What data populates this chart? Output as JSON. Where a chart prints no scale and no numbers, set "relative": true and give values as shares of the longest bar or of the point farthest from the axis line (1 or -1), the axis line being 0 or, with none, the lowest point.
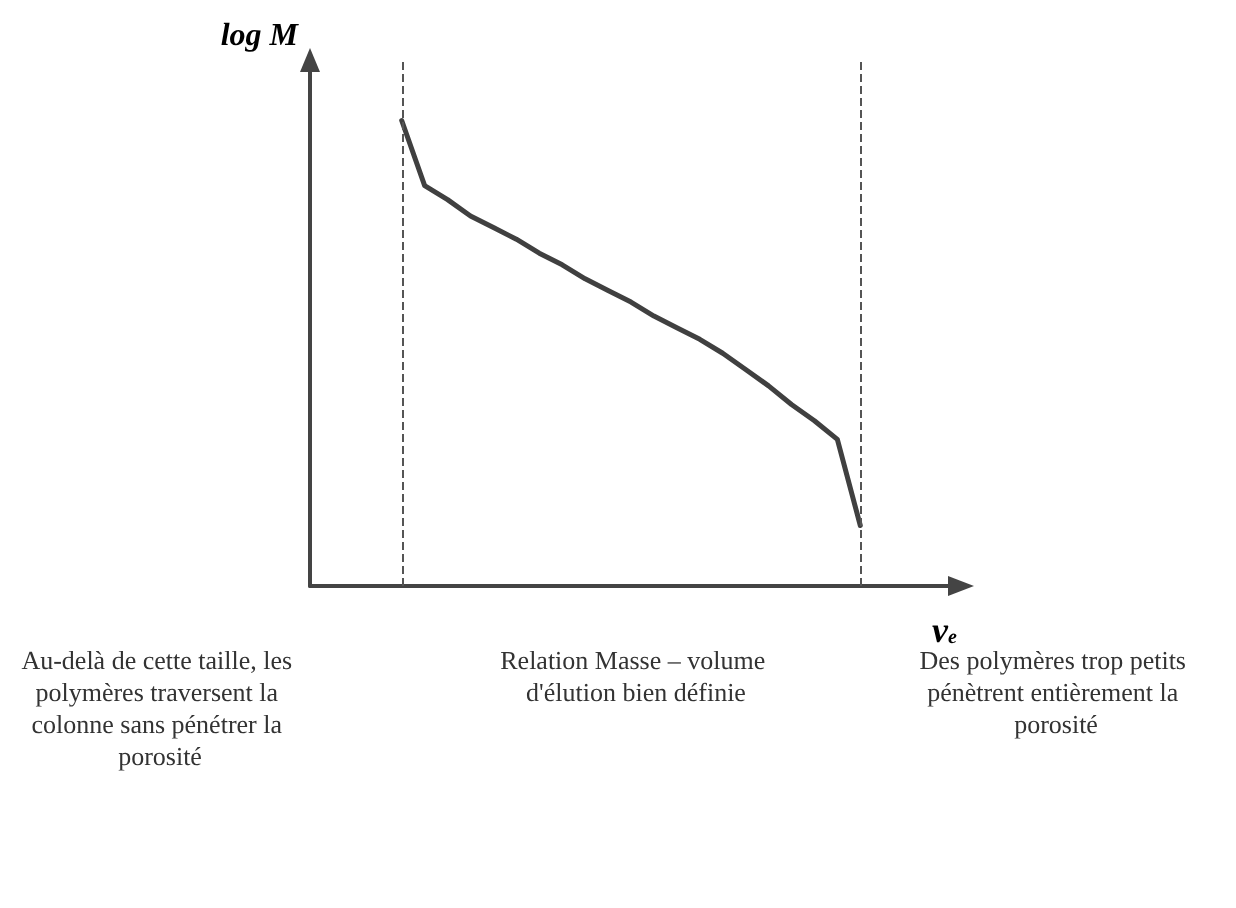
{
  "chart_data": {
    "type": "line",
    "relative": true,
    "xlabel": "v$_{e}$",
    "ylabel": "log M",
    "categories": [
      null,
      null,
      null,
      null,
      null,
      null,
      null,
      null,
      null,
      null,
      null,
      null,
      null,
      null,
      null,
      null,
      null,
      null,
      null,
      null,
      null,
      null,
      null,
      null,
      null,
      null,
      null,
      null,
      null
    ],
    "series": [
      {
        "color": "#404040",
        "values": [
          null,
          null,
          null,
          null,
          1.0,
          0.86,
          0.83,
          0.795,
          0.77,
          0.745,
          0.715,
          0.69,
          0.66,
          0.635,
          0.61,
          0.58,
          0.555,
          0.53,
          0.5,
          0.465,
          0.43,
          0.39,
          0.355,
          0.315,
          0.13,
          null,
          null,
          null,
          null
        ]
      }
    ],
    "ref_lines": [
      {
        "axis": "x",
        "line_style": "dashed"
      },
      {
        "axis": "x",
        "line_style": "dashed"
      }
    ],
    "annotations": [
      "Au-delà de cette taille, les polymères traversent la colonne sans pénétrer la porosité",
      "Relation Masse – volume d'élution bien définie",
      "Des polymères trop petits pénètrent entièrement la porosité"
    ],
    "marker": "none",
    "line_style": "solid",
    "grid": false
  }
}
